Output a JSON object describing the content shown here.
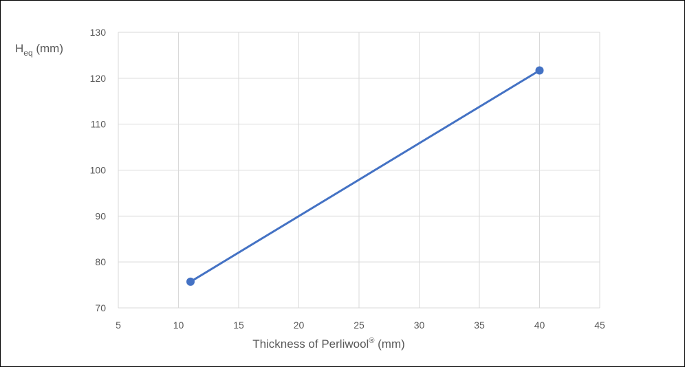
{
  "chart_data": {
    "type": "scatter",
    "title": "",
    "xlabel": "Thickness of Perliwool® (mm)",
    "xlabel_parts": {
      "main": "Thickness of Perliwool",
      "sup": "®",
      "unit": " (mm)"
    },
    "ylabel": "Heq (mm)",
    "ylabel_parts": {
      "main": "H",
      "sub": "eq",
      "unit": " (mm)"
    },
    "xlim": [
      5,
      45
    ],
    "ylim": [
      70,
      130
    ],
    "xticks": [
      5,
      10,
      15,
      20,
      25,
      30,
      35,
      40,
      45
    ],
    "yticks": [
      70,
      80,
      90,
      100,
      110,
      120,
      130
    ],
    "grid": true,
    "legend": "none",
    "series": [
      {
        "x": [
          11,
          40
        ],
        "y": [
          75.7,
          121.7
        ],
        "color": "#4472c4",
        "marker": "circle",
        "line": true
      }
    ]
  }
}
